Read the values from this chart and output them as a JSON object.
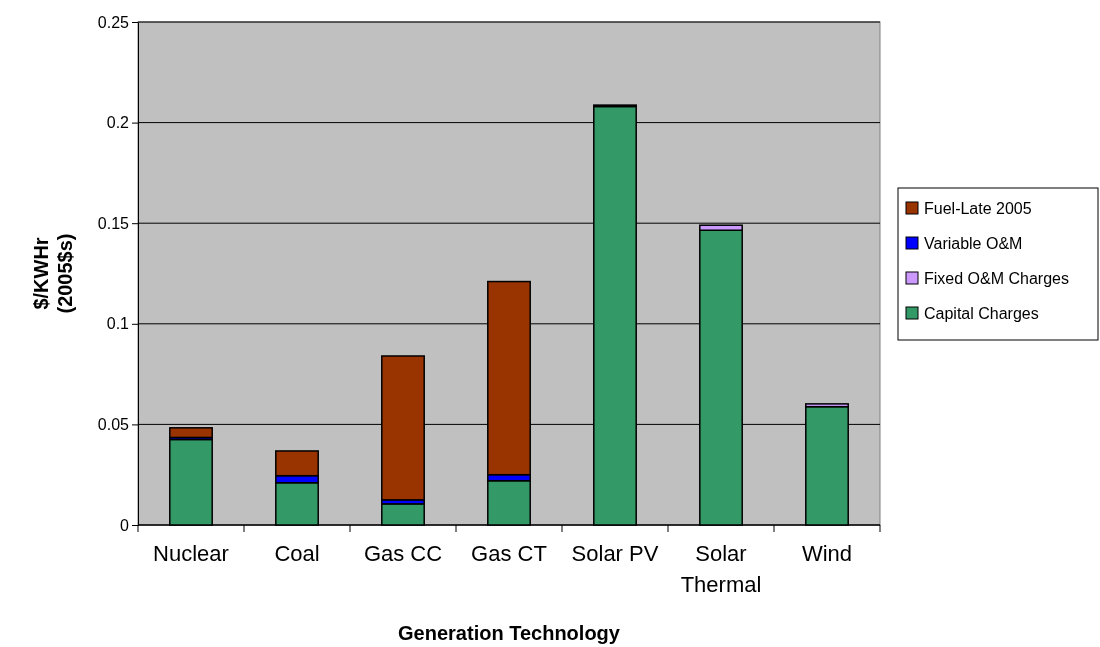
{
  "chart_data": {
    "type": "bar",
    "stacked": true,
    "xlabel": "Generation Technology",
    "ylabel": "$/KWHr\n(2005$s)",
    "categories": [
      "Nuclear",
      "Coal",
      "Gas CC",
      "Gas CT",
      "Solar PV",
      "Solar Thermal",
      "Wind"
    ],
    "series": [
      {
        "name": "Capital Charges",
        "color": "#339966",
        "values": [
          0.0425,
          0.021,
          0.0105,
          0.022,
          0.208,
          0.1465,
          0.0588
        ]
      },
      {
        "name": "Fixed O&M Charges",
        "color": "#cc99ff",
        "values": [
          null,
          null,
          null,
          null,
          0.0007,
          0.0025,
          0.0014
        ]
      },
      {
        "name": "Variable O&M",
        "color": "#0000ff",
        "values": [
          0.001,
          0.0035,
          0.002,
          0.003,
          0,
          0,
          0
        ]
      },
      {
        "name": "Fuel-Late 2005",
        "color": "#993300",
        "values": [
          0.0048,
          0.0123,
          0.0715,
          0.096,
          0,
          0,
          0
        ]
      }
    ],
    "ylim": [
      0,
      0.25
    ],
    "yticks": [
      0,
      0.05,
      0.1,
      0.15,
      0.2,
      0.25
    ],
    "grid": "y",
    "legend": "right"
  }
}
